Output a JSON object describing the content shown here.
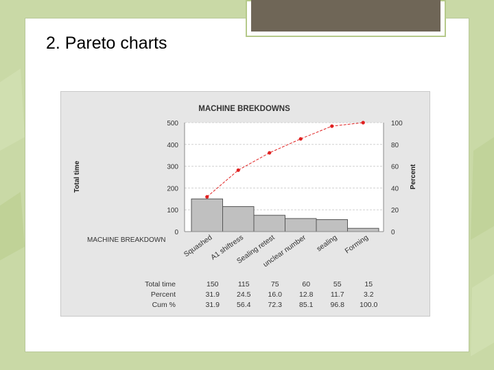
{
  "slide": {
    "title": "2. Pareto charts"
  },
  "colors": {
    "background": "#c9d9a6",
    "accent": "#6f6657",
    "bar_fill": "#c0c0c0",
    "cumulative_line": "#e02020"
  },
  "chart_data": {
    "type": "bar",
    "title": "MACHINE BREKDOWNS",
    "xlabel": "MACHINE BREAKDOWN",
    "ylabel": "Total time",
    "y2label": "Percent",
    "categories": [
      "Squashed",
      "A1 shiftress",
      "Sealing retest",
      "unclear number",
      "sealing",
      "Forming"
    ],
    "series": [
      {
        "name": "Total time",
        "values": [
          150,
          115,
          75,
          60,
          55,
          15
        ]
      },
      {
        "name": "Cum %",
        "values": [
          31.9,
          56.4,
          72.3,
          85.1,
          96.8,
          100.0
        ]
      }
    ],
    "ylim": [
      0,
      500
    ],
    "y_ticks": [
      "0",
      "100",
      "200",
      "300",
      "400",
      "500"
    ],
    "y2lim": [
      0,
      100
    ],
    "y2_ticks": [
      "0",
      "20",
      "40",
      "60",
      "80",
      "100"
    ],
    "table": {
      "row_labels": [
        "Total time",
        "Percent",
        "Cum %"
      ],
      "rows": [
        [
          "150",
          "115",
          "75",
          "60",
          "55",
          "15"
        ],
        [
          "31.9",
          "24.5",
          "16.0",
          "12.8",
          "11.7",
          "3.2"
        ],
        [
          "31.9",
          "56.4",
          "72.3",
          "85.1",
          "96.8",
          "100.0"
        ]
      ]
    },
    "grid": true,
    "legend": "none"
  }
}
